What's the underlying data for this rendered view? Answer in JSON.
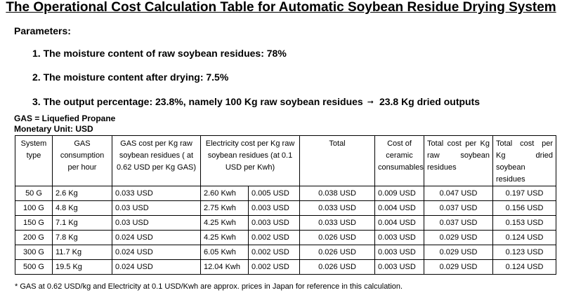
{
  "title": "The Operational Cost Calculation Table for Automatic Soybean Residue Drying System",
  "parameters": {
    "heading": "Parameters:",
    "items": [
      "1. The moisture content of raw soybean residues: 78%",
      "2. The moisture content after drying: 7.5%",
      "3. The output percentage: 23.8%, namely 100 Kg raw soybean residues"
    ],
    "output_result": "23.8 Kg dried outputs"
  },
  "notes": {
    "gas": "GAS = Liquefied Propane",
    "currency": "Monetary Unit: USD"
  },
  "table": {
    "headers": {
      "system_type": "System type",
      "gas_consumption": "GAS consumption per hour",
      "gas_cost": "GAS cost per Kg raw soybean residues ( at 0.62 USD per Kg GAS)",
      "electricity_cost": "Electricity cost per Kg raw soybean residues (at 0.1 USD per Kwh)",
      "total": "Total",
      "ceramic": "Cost of ceramic consumables",
      "total_raw": "Total cost per Kg raw soybean residues",
      "total_dried": "Total cost per Kg dried soybean residues"
    },
    "rows": [
      {
        "type": "50 G",
        "gas": "2.6 Kg",
        "gas_cost": "0.033  USD",
        "kwh": "2.60 Kwh",
        "elec_cost": "0.005  USD",
        "total": "0.038  USD",
        "ceramic": "0.009  USD",
        "total_raw": "0.047  USD",
        "total_dried": "0.197  USD"
      },
      {
        "type": "100 G",
        "gas": "4.8 Kg",
        "gas_cost": "0.03 USD",
        "kwh": "2.75 Kwh",
        "elec_cost": "0.003  USD",
        "total": "0.033  USD",
        "ceramic": "0.004 USD",
        "total_raw": "0.037 USD",
        "total_dried": "0.156 USD"
      },
      {
        "type": "150 G",
        "gas": "7.1 Kg",
        "gas_cost": "0.03 USD",
        "kwh": "4.25 Kwh",
        "elec_cost": "0.003  USD",
        "total": "0.033 USD",
        "ceramic": "0.004 USD",
        "total_raw": "0.037 USD",
        "total_dried": "0.153 USD"
      },
      {
        "type": "200 G",
        "gas": "7.8 Kg",
        "gas_cost": "0.024 USD",
        "kwh": "4.25 Kwh",
        "elec_cost": "0.002  USD",
        "total": "0.026 USD",
        "ceramic": "0.003 USD",
        "total_raw": "0.029 USD",
        "total_dried": "0.124 USD"
      },
      {
        "type": "300 G",
        "gas": "11.7 Kg",
        "gas_cost": "0.024 USD",
        "kwh": "6.05 Kwh",
        "elec_cost": "0.002 USD",
        "total": "0.026 USD",
        "ceramic": "0.003 USD",
        "total_raw": "0.029 USD",
        "total_dried": "0.123 USD"
      },
      {
        "type": "500 G",
        "gas": "19.5 Kg",
        "gas_cost": "0.024 USD",
        "kwh": "12.04 Kwh",
        "elec_cost": "0.002  USD",
        "total": "0.026 USD",
        "ceramic": "0.003 USD",
        "total_raw": "0.029 USD",
        "total_dried": "0.124 USD"
      }
    ]
  },
  "footnote": "* GAS at 0.62 USD/kg and Electricity at 0.1 USD/Kwh are approx. prices in Japan for reference in this calculation."
}
